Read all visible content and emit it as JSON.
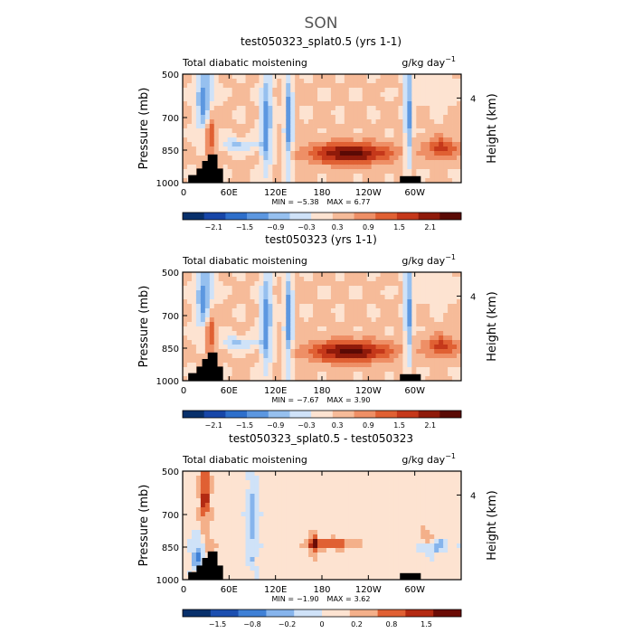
{
  "figure_title": "SON",
  "chart_data": [
    {
      "type": "heatmap",
      "title": "test050323_splat0.5 (yrs 1-1)",
      "subtitle_left": "Total diabatic moistening",
      "units_base": "g/kg day",
      "units_exp": "−1",
      "ylabel": "Pressure (mb)",
      "ylabel_right": "Height (km)",
      "y_ticks": [
        "500",
        "700",
        "850",
        "1000"
      ],
      "y_right_ticks": [
        "4"
      ],
      "x_ticks": [
        "0",
        "60E",
        "120E",
        "180",
        "120W",
        "60W"
      ],
      "min_label": "MIN =",
      "min_value": "−5.38",
      "max_label": "MAX =",
      "max_value": "6.77",
      "colorbar_labels": [
        "−2.1",
        "−1.5",
        "−0.9",
        "−0.3",
        "0.3",
        "0.9",
        "1.5",
        "2.1"
      ]
    },
    {
      "type": "heatmap",
      "title": "test050323 (yrs 1-1)",
      "subtitle_left": "Total diabatic moistening",
      "units_base": "g/kg day",
      "units_exp": "−1",
      "ylabel": "Pressure (mb)",
      "ylabel_right": "Height (km)",
      "y_ticks": [
        "500",
        "700",
        "850",
        "1000"
      ],
      "y_right_ticks": [
        "4"
      ],
      "x_ticks": [
        "0",
        "60E",
        "120E",
        "180",
        "120W",
        "60W"
      ],
      "min_label": "MIN =",
      "min_value": "−7.67",
      "max_label": "MAX =",
      "max_value": "3.90",
      "colorbar_labels": [
        "−2.1",
        "−1.5",
        "−0.9",
        "−0.3",
        "0.3",
        "0.9",
        "1.5",
        "2.1"
      ]
    },
    {
      "type": "heatmap",
      "title": "test050323_splat0.5 - test050323",
      "subtitle_left": "Total diabatic moistening",
      "units_base": "g/kg day",
      "units_exp": "−1",
      "ylabel": "Pressure (mb)",
      "ylabel_right": "Height (km)",
      "y_ticks": [
        "500",
        "700",
        "850",
        "1000"
      ],
      "y_right_ticks": [
        "4"
      ],
      "x_ticks": [
        "0",
        "60E",
        "120E",
        "180",
        "120W",
        "60W"
      ],
      "min_label": "MIN =",
      "min_value": "−1.90",
      "max_label": "MAX =",
      "max_value": "3.62",
      "colorbar_labels": [
        "−1.5",
        "−0.8",
        "−0.2",
        "0",
        "0.2",
        "0.8",
        "1.5"
      ]
    }
  ],
  "palette": [
    "#08306b",
    "#1746a8",
    "#2e6fcb",
    "#5c97e0",
    "#96c0ef",
    "#cfe2f8",
    "#fde3d1",
    "#f6bb99",
    "#ee8f66",
    "#e06033",
    "#c5381a",
    "#8f1a0a",
    "#5a0a05"
  ],
  "palette_diff": [
    "#08306b",
    "#1c4fb0",
    "#3f80d6",
    "#86b4ec",
    "#cfe2f8",
    "#fde3d1",
    "#f4b08a",
    "#e06033",
    "#b32a12",
    "#6b0c06"
  ]
}
